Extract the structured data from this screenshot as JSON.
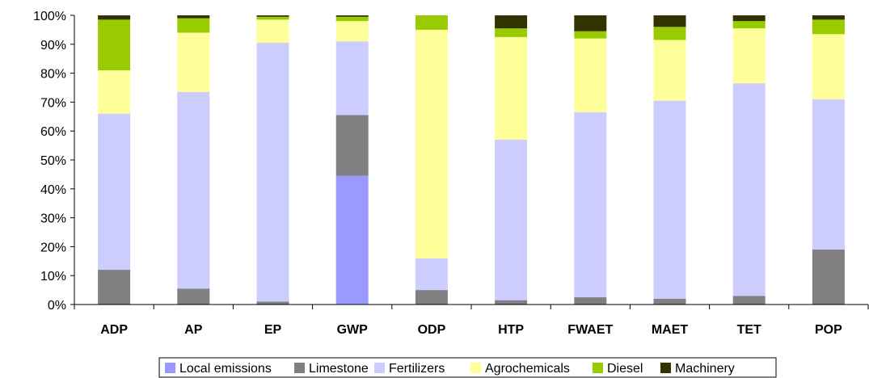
{
  "chart_data": {
    "type": "bar",
    "stacked": true,
    "percent": true,
    "categories": [
      "ADP",
      "AP",
      "EP",
      "GWP",
      "ODP",
      "HTP",
      "FWAET",
      "MAET",
      "TET",
      "POP"
    ],
    "series": [
      {
        "name": "Local emissions",
        "color": "#9999FF",
        "values": [
          0,
          0,
          0,
          44.5,
          0,
          0,
          0,
          0,
          0,
          0
        ]
      },
      {
        "name": "Limestone",
        "color": "#808080",
        "values": [
          12,
          5.5,
          1,
          21,
          5,
          1.5,
          2.5,
          2,
          3,
          19
        ]
      },
      {
        "name": "Fertilizers",
        "color": "#CCCCFF",
        "values": [
          54,
          68,
          89.5,
          25.5,
          11,
          55.5,
          64,
          68.5,
          73.5,
          52
        ]
      },
      {
        "name": "Agrochemicals",
        "color": "#FFFF99",
        "values": [
          15,
          20.5,
          8,
          7,
          79,
          35.5,
          25.5,
          21,
          19,
          22.5
        ]
      },
      {
        "name": "Diesel",
        "color": "#99CC00",
        "values": [
          17.5,
          5,
          1,
          1.5,
          5,
          3,
          2.5,
          4.5,
          2.5,
          5
        ]
      },
      {
        "name": "Machinery",
        "color": "#333300",
        "values": [
          1.5,
          1,
          0.5,
          0.5,
          0,
          4.5,
          5.5,
          4,
          2,
          1.5
        ]
      }
    ],
    "yticks": [
      "0%",
      "10%",
      "20%",
      "30%",
      "40%",
      "50%",
      "60%",
      "70%",
      "80%",
      "90%",
      "100%"
    ],
    "ylim": [
      0,
      100
    ],
    "grid": false,
    "legend": "bottom",
    "title": "",
    "xlabel": "",
    "ylabel": ""
  }
}
